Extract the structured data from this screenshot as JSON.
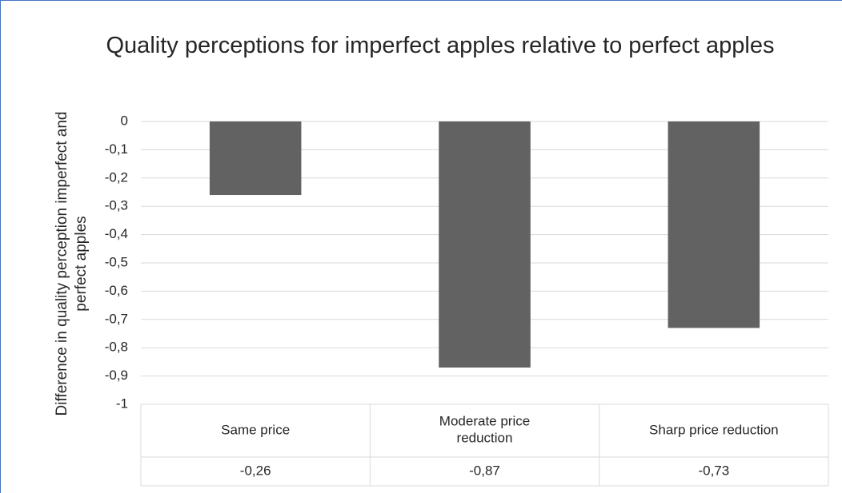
{
  "chart_data": {
    "type": "bar",
    "title": "Quality perceptions for imperfect apples relative to perfect apples",
    "y_label": "Difference in quality perception imperfect and perfect apples",
    "categories": [
      "Same price",
      "Moderate price reduction",
      "Sharp price reduction"
    ],
    "values": [
      -0.26,
      -0.87,
      -0.73
    ],
    "value_labels": [
      "-0,26",
      "-0,87",
      "-0,73"
    ],
    "color": "#626262",
    "ylim": [
      -1,
      0
    ],
    "yticks": [
      0,
      {
        "value": -0.1,
        "label": "-0,1"
      },
      {
        "value": -0.2,
        "label": "-0,2"
      },
      {
        "value": -0.3,
        "label": "-0,3"
      },
      {
        "value": -0.4,
        "label": "-0,4"
      },
      {
        "value": -0.5,
        "label": "-0,5"
      },
      {
        "value": -0.6,
        "label": "-0,6"
      },
      {
        "value": -0.7,
        "label": "-0,7"
      },
      {
        "value": -0.8,
        "label": "-0,8"
      },
      {
        "value": -0.9,
        "label": "-0,9"
      },
      -1
    ],
    "grid": true,
    "data_table": true
  }
}
